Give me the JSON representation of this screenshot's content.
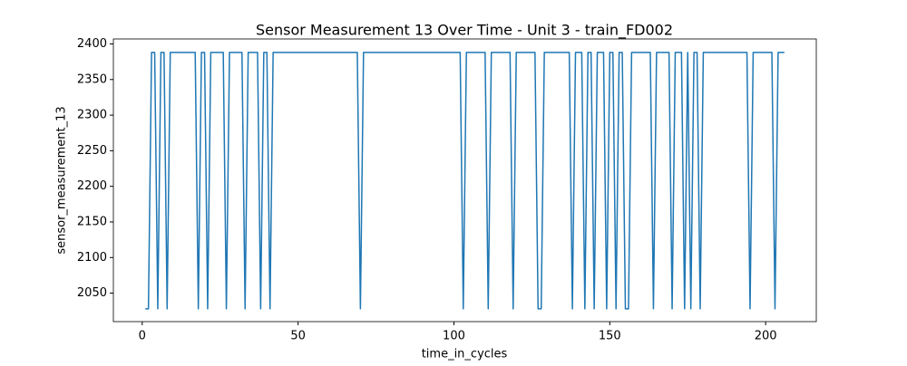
{
  "chart_data": {
    "type": "line",
    "title": "Sensor Measurement 13 Over Time - Unit 3 - train_FD002",
    "x_label": "time_in_cycles",
    "y_label": "sensor_measurement_13",
    "x": [
      1,
      2,
      3,
      4,
      5,
      6,
      7,
      8,
      9,
      10,
      11,
      12,
      13,
      14,
      15,
      16,
      17,
      18,
      19,
      20,
      21,
      22,
      23,
      24,
      25,
      26,
      27,
      28,
      29,
      30,
      31,
      32,
      33,
      34,
      35,
      36,
      37,
      38,
      39,
      40,
      41,
      42,
      43,
      44,
      45,
      46,
      47,
      48,
      49,
      50,
      51,
      52,
      53,
      54,
      55,
      56,
      57,
      58,
      59,
      60,
      61,
      62,
      63,
      64,
      65,
      66,
      67,
      68,
      69,
      70,
      71,
      72,
      73,
      74,
      75,
      76,
      77,
      78,
      79,
      80,
      81,
      82,
      83,
      84,
      85,
      86,
      87,
      88,
      89,
      90,
      91,
      92,
      93,
      94,
      95,
      96,
      97,
      98,
      99,
      100,
      101,
      102,
      103,
      104,
      105,
      106,
      107,
      108,
      109,
      110,
      111,
      112,
      113,
      114,
      115,
      116,
      117,
      118,
      119,
      120,
      121,
      122,
      123,
      124,
      125,
      126,
      127,
      128,
      129,
      130,
      131,
      132,
      133,
      134,
      135,
      136,
      137,
      138,
      139,
      140,
      141,
      142,
      143,
      144,
      145,
      146,
      147,
      148,
      149,
      150,
      151,
      152,
      153,
      154,
      155,
      156,
      157,
      158,
      159,
      160,
      161,
      162,
      163,
      164,
      165,
      166,
      167,
      168,
      169,
      170,
      171,
      172,
      173,
      174,
      175,
      176,
      177,
      178,
      179,
      180,
      181,
      182,
      183,
      184,
      185,
      186,
      187,
      188,
      189,
      190,
      191,
      192,
      193,
      194,
      195,
      196,
      197,
      198,
      199,
      200,
      201,
      202,
      203,
      204,
      205,
      206
    ],
    "series": [
      {
        "name": "sensor_measurement_13",
        "color": "#1f77b4",
        "values": [
          2028,
          2028,
          2388,
          2388,
          2028,
          2388,
          2388,
          2028,
          2388,
          2388,
          2388,
          2388,
          2388,
          2388,
          2388,
          2388,
          2388,
          2028,
          2388,
          2388,
          2028,
          2388,
          2388,
          2388,
          2388,
          2388,
          2028,
          2388,
          2388,
          2388,
          2388,
          2388,
          2028,
          2388,
          2388,
          2388,
          2388,
          2028,
          2388,
          2388,
          2028,
          2388,
          2388,
          2388,
          2388,
          2388,
          2388,
          2388,
          2388,
          2388,
          2388,
          2388,
          2388,
          2388,
          2388,
          2388,
          2388,
          2388,
          2388,
          2388,
          2388,
          2388,
          2388,
          2388,
          2388,
          2388,
          2388,
          2388,
          2388,
          2028,
          2388,
          2388,
          2388,
          2388,
          2388,
          2388,
          2388,
          2388,
          2388,
          2388,
          2388,
          2388,
          2388,
          2388,
          2388,
          2388,
          2388,
          2388,
          2388,
          2388,
          2388,
          2388,
          2388,
          2388,
          2388,
          2388,
          2388,
          2388,
          2388,
          2388,
          2388,
          2388,
          2028,
          2388,
          2388,
          2388,
          2388,
          2388,
          2388,
          2388,
          2028,
          2388,
          2388,
          2388,
          2388,
          2388,
          2388,
          2388,
          2028,
          2388,
          2388,
          2388,
          2388,
          2388,
          2388,
          2388,
          2028,
          2028,
          2388,
          2388,
          2388,
          2388,
          2388,
          2388,
          2388,
          2388,
          2388,
          2028,
          2388,
          2388,
          2388,
          2028,
          2388,
          2388,
          2028,
          2388,
          2388,
          2388,
          2028,
          2388,
          2388,
          2028,
          2388,
          2388,
          2028,
          2028,
          2388,
          2388,
          2388,
          2388,
          2388,
          2388,
          2388,
          2028,
          2388,
          2388,
          2388,
          2388,
          2388,
          2028,
          2388,
          2388,
          2388,
          2028,
          2388,
          2028,
          2388,
          2388,
          2028,
          2388,
          2388,
          2388,
          2388,
          2388,
          2388,
          2388,
          2388,
          2388,
          2388,
          2388,
          2388,
          2388,
          2388,
          2388,
          2028,
          2388,
          2388,
          2388,
          2388,
          2388,
          2388,
          2388,
          2028,
          2388,
          2388,
          2388
        ]
      }
    ],
    "xlim": [
      -9.25,
      216.25
    ],
    "xticks": [
      0,
      50,
      100,
      150,
      200
    ],
    "ylim": [
      2010,
      2407
    ],
    "yticks": [
      2050,
      2100,
      2150,
      2200,
      2250,
      2300,
      2350,
      2400
    ]
  }
}
